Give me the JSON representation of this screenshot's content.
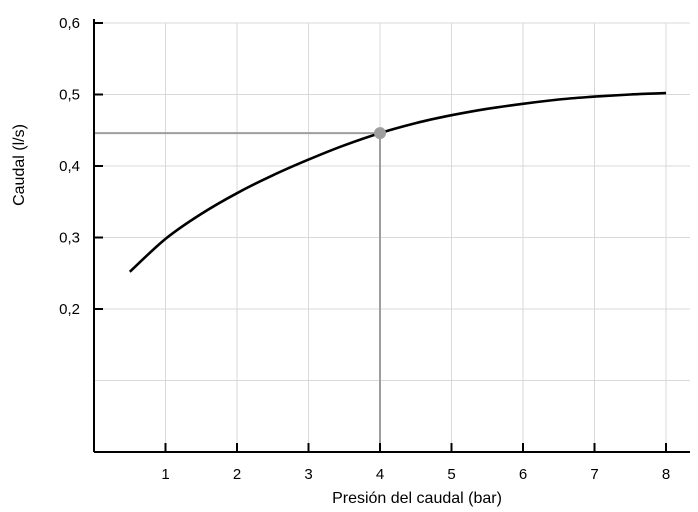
{
  "chart_data": {
    "type": "line",
    "xlabel": "Presión del caudal (bar)",
    "ylabel": "Caudal (l/s)",
    "xlim": [
      0,
      8.4
    ],
    "ylim": [
      0,
      0.6
    ],
    "x_ticks": [
      1,
      2,
      3,
      4,
      5,
      6,
      7,
      8
    ],
    "x_tick_labels": [
      "1",
      "2",
      "3",
      "4",
      "5",
      "6",
      "7",
      "8"
    ],
    "y_ticks": [
      0.2,
      0.3,
      0.4,
      0.5,
      0.6
    ],
    "y_tick_labels": [
      "0,2",
      "0,3",
      "0,4",
      "0,5",
      "0,6"
    ],
    "grid": true,
    "series": [
      {
        "x": [
          0.5,
          1.0,
          1.5,
          2.0,
          2.5,
          3.0,
          3.5,
          4.0,
          4.5,
          5.0,
          5.5,
          6.0,
          6.5,
          7.0,
          7.5,
          8.0
        ],
        "y": [
          0.252,
          0.298,
          0.333,
          0.362,
          0.387,
          0.409,
          0.429,
          0.446,
          0.46,
          0.471,
          0.48,
          0.487,
          0.493,
          0.497,
          0.5,
          0.502
        ],
        "color": "#000000"
      }
    ],
    "highlight_point": {
      "x": 4,
      "y": 0.446,
      "color": "#9e9e9e"
    }
  }
}
